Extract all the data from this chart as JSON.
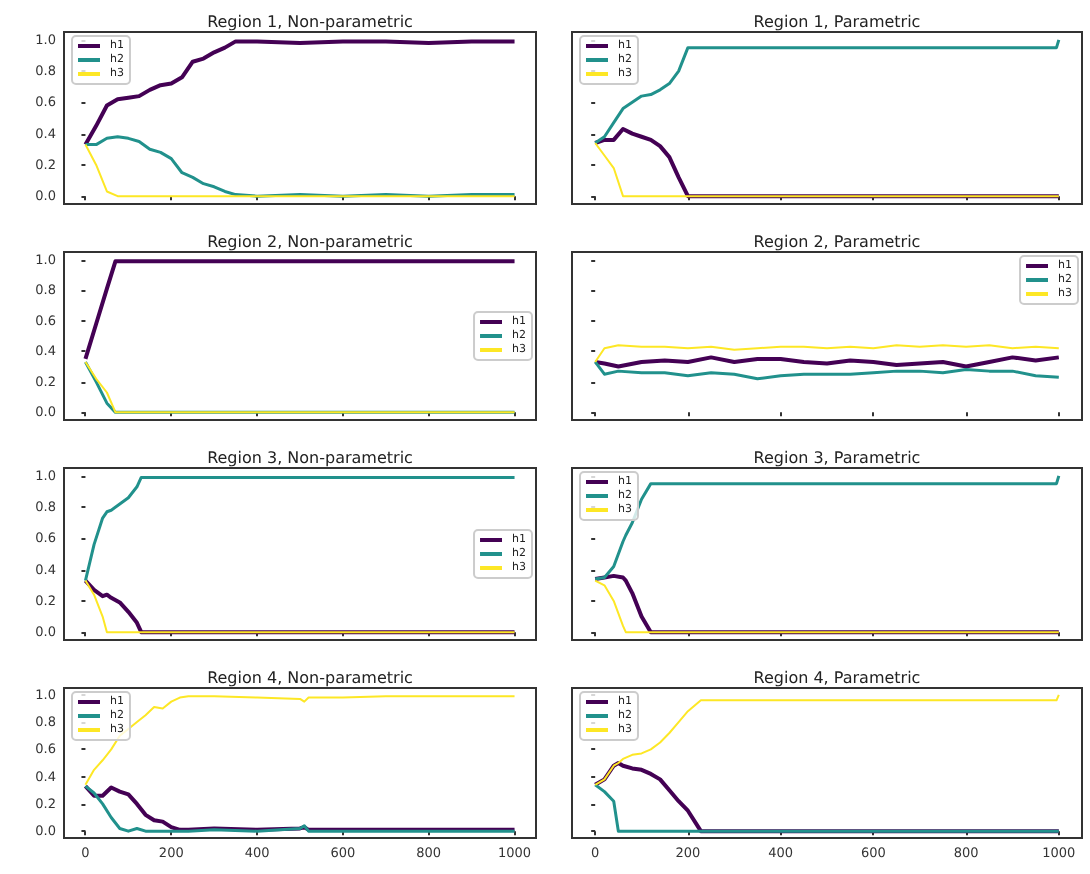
{
  "chart_data": [
    {
      "type": "line",
      "title": "Region 1, Non-parametric",
      "legend": "top left",
      "tick_labels": "y",
      "xlim": [
        -50,
        1050
      ],
      "xticks": [
        0,
        200,
        400,
        600,
        800,
        1000
      ],
      "ylim": [
        -0.05,
        1.05
      ],
      "yticks": [
        {
          "value": 0,
          "label": "0.0"
        },
        {
          "value": 0.2,
          "label": "0.2"
        },
        {
          "value": 0.4,
          "label": "0.4"
        },
        {
          "value": 0.6,
          "label": "0.6"
        },
        {
          "value": 0.8,
          "label": "0.8"
        },
        {
          "value": 1,
          "label": "1.0"
        }
      ],
      "x": [
        0,
        25,
        50,
        75,
        100,
        125,
        150,
        175,
        200,
        225,
        250,
        275,
        300,
        325,
        350,
        400,
        500,
        600,
        700,
        800,
        900,
        1000
      ],
      "series": [
        {
          "name": "h1",
          "color": "#440154",
          "values": [
            0.33,
            0.45,
            0.58,
            0.62,
            0.63,
            0.64,
            0.68,
            0.71,
            0.72,
            0.76,
            0.86,
            0.88,
            0.92,
            0.95,
            0.99,
            0.99,
            0.98,
            0.99,
            0.99,
            0.98,
            0.99,
            0.99
          ]
        },
        {
          "name": "h2",
          "color": "#21918c",
          "values": [
            0.33,
            0.33,
            0.37,
            0.38,
            0.37,
            0.35,
            0.3,
            0.28,
            0.24,
            0.15,
            0.12,
            0.08,
            0.06,
            0.03,
            0.01,
            0,
            0.01,
            0,
            0.01,
            0,
            0.01,
            0.01
          ]
        },
        {
          "name": "h3",
          "color": "#fde725",
          "values": [
            0.33,
            0.2,
            0.03,
            0,
            0,
            0,
            0,
            0,
            0,
            0,
            0,
            0,
            0,
            0,
            0,
            0,
            0,
            0,
            0,
            0,
            0,
            0
          ]
        }
      ]
    },
    {
      "type": "line",
      "title": "Region 1, Parametric",
      "legend": "top left",
      "tick_labels": false,
      "xlim": [
        -50,
        1050
      ],
      "xticks": [
        0,
        200,
        400,
        600,
        800,
        1000
      ],
      "ylim": [
        -0.05,
        1.05
      ],
      "yticks": [
        {
          "value": 0,
          "label": null
        },
        {
          "value": 0.2,
          "label": null
        },
        {
          "value": 0.4,
          "label": null
        },
        {
          "value": 0.6,
          "label": null
        },
        {
          "value": 0.8,
          "label": null
        },
        {
          "value": 1,
          "label": null
        }
      ],
      "x": [
        0,
        20,
        40,
        60,
        80,
        100,
        120,
        140,
        160,
        180,
        200,
        400,
        600,
        800,
        995,
        1000
      ],
      "series": [
        {
          "name": "h1",
          "color": "#440154",
          "values": [
            0.34,
            0.36,
            0.36,
            0.43,
            0.4,
            0.38,
            0.36,
            0.32,
            0.25,
            0.12,
            0,
            0,
            0,
            0,
            0,
            0
          ]
        },
        {
          "name": "h2",
          "color": "#21918c",
          "values": [
            0.34,
            0.38,
            0.47,
            0.56,
            0.6,
            0.64,
            0.65,
            0.68,
            0.72,
            0.8,
            0.95,
            0.95,
            0.95,
            0.95,
            0.95,
            1
          ]
        },
        {
          "name": "h3",
          "color": "#fde725",
          "values": [
            0.34,
            0.26,
            0.18,
            0,
            0,
            0,
            0,
            0,
            0,
            0,
            0,
            0,
            0,
            0,
            0,
            0
          ]
        }
      ]
    },
    {
      "type": "line",
      "title": "Region 2, Non-parametric",
      "legend": "right",
      "tick_labels": "y",
      "xlim": [
        -50,
        1050
      ],
      "xticks": [
        0,
        200,
        400,
        600,
        800,
        1000
      ],
      "ylim": [
        -0.05,
        1.05
      ],
      "yticks": [
        {
          "value": 0,
          "label": "0.0"
        },
        {
          "value": 0.2,
          "label": "0.2"
        },
        {
          "value": 0.4,
          "label": "0.4"
        },
        {
          "value": 0.6,
          "label": "0.6"
        },
        {
          "value": 0.8,
          "label": "0.8"
        },
        {
          "value": 1,
          "label": "1.0"
        }
      ],
      "x": [
        0,
        25,
        50,
        70,
        1000
      ],
      "series": [
        {
          "name": "h1",
          "color": "#440154",
          "values": [
            0.35,
            0.58,
            0.81,
            0.99,
            0.99
          ]
        },
        {
          "name": "h2",
          "color": "#21918c",
          "values": [
            0.33,
            0.2,
            0.06,
            0,
            0
          ]
        },
        {
          "name": "h3",
          "color": "#fde725",
          "values": [
            0.33,
            0.22,
            0.13,
            0,
            0
          ]
        }
      ]
    },
    {
      "type": "line",
      "title": "Region 2, Parametric",
      "legend": "top right",
      "tick_labels": false,
      "xlim": [
        -50,
        1050
      ],
      "xticks": [
        0,
        200,
        400,
        600,
        800,
        1000
      ],
      "ylim": [
        -0.05,
        1.05
      ],
      "yticks": [
        {
          "value": 0,
          "label": null
        },
        {
          "value": 0.2,
          "label": null
        },
        {
          "value": 0.4,
          "label": null
        },
        {
          "value": 0.6,
          "label": null
        },
        {
          "value": 0.8,
          "label": null
        },
        {
          "value": 1,
          "label": null
        }
      ],
      "x": [
        0,
        20,
        50,
        100,
        150,
        200,
        250,
        300,
        350,
        400,
        450,
        500,
        550,
        600,
        650,
        700,
        750,
        800,
        850,
        900,
        950,
        1000
      ],
      "series": [
        {
          "name": "h1",
          "color": "#440154",
          "values": [
            0.33,
            0.32,
            0.3,
            0.33,
            0.34,
            0.33,
            0.36,
            0.33,
            0.35,
            0.35,
            0.33,
            0.32,
            0.34,
            0.33,
            0.31,
            0.32,
            0.33,
            0.3,
            0.33,
            0.36,
            0.34,
            0.36
          ]
        },
        {
          "name": "h2",
          "color": "#21918c",
          "values": [
            0.33,
            0.25,
            0.27,
            0.26,
            0.26,
            0.24,
            0.26,
            0.25,
            0.22,
            0.24,
            0.25,
            0.25,
            0.25,
            0.26,
            0.27,
            0.27,
            0.26,
            0.28,
            0.27,
            0.27,
            0.24,
            0.23
          ]
        },
        {
          "name": "h3",
          "color": "#fde725",
          "values": [
            0.33,
            0.42,
            0.44,
            0.43,
            0.43,
            0.42,
            0.43,
            0.41,
            0.42,
            0.43,
            0.43,
            0.42,
            0.43,
            0.42,
            0.44,
            0.43,
            0.44,
            0.43,
            0.44,
            0.42,
            0.43,
            0.42
          ]
        }
      ]
    },
    {
      "type": "line",
      "title": "Region 3, Non-parametric",
      "legend": "right",
      "tick_labels": "y",
      "xlim": [
        -50,
        1050
      ],
      "xticks": [
        0,
        200,
        400,
        600,
        800,
        1000
      ],
      "ylim": [
        -0.05,
        1.05
      ],
      "yticks": [
        {
          "value": 0,
          "label": "0.0"
        },
        {
          "value": 0.2,
          "label": "0.2"
        },
        {
          "value": 0.4,
          "label": "0.4"
        },
        {
          "value": 0.6,
          "label": "0.6"
        },
        {
          "value": 0.8,
          "label": "0.8"
        },
        {
          "value": 1,
          "label": "1.0"
        }
      ],
      "x": [
        0,
        20,
        40,
        50,
        60,
        80,
        100,
        120,
        130,
        1000
      ],
      "series": [
        {
          "name": "h1",
          "color": "#440154",
          "values": [
            0.33,
            0.27,
            0.23,
            0.24,
            0.22,
            0.19,
            0.13,
            0.06,
            0,
            0
          ]
        },
        {
          "name": "h2",
          "color": "#21918c",
          "values": [
            0.33,
            0.56,
            0.73,
            0.77,
            0.78,
            0.82,
            0.86,
            0.93,
            0.99,
            0.99
          ]
        },
        {
          "name": "h3",
          "color": "#fde725",
          "values": [
            0.33,
            0.24,
            0.1,
            0,
            0,
            0,
            0,
            0,
            0,
            0
          ]
        }
      ]
    },
    {
      "type": "line",
      "title": "Region 3, Parametric",
      "legend": "top left",
      "tick_labels": false,
      "xlim": [
        -50,
        1050
      ],
      "xticks": [
        0,
        200,
        400,
        600,
        800,
        1000
      ],
      "ylim": [
        -0.05,
        1.05
      ],
      "yticks": [
        {
          "value": 0,
          "label": null
        },
        {
          "value": 0.2,
          "label": null
        },
        {
          "value": 0.4,
          "label": null
        },
        {
          "value": 0.6,
          "label": null
        },
        {
          "value": 0.8,
          "label": null
        },
        {
          "value": 1,
          "label": null
        }
      ],
      "x": [
        0,
        20,
        40,
        60,
        66,
        80,
        100,
        120,
        995,
        1000
      ],
      "series": [
        {
          "name": "h1",
          "color": "#440154",
          "values": [
            0.34,
            0.35,
            0.36,
            0.35,
            0.33,
            0.25,
            0.1,
            0,
            0,
            0
          ]
        },
        {
          "name": "h2",
          "color": "#21918c",
          "values": [
            0.34,
            0.35,
            0.42,
            0.58,
            0.62,
            0.7,
            0.85,
            0.95,
            0.95,
            1
          ]
        },
        {
          "name": "h3",
          "color": "#fde725",
          "values": [
            0.33,
            0.3,
            0.2,
            0.04,
            0,
            0,
            0,
            0,
            0,
            0
          ]
        }
      ]
    },
    {
      "type": "line",
      "title": "Region 4, Non-parametric",
      "legend": "top left",
      "xlim": [
        -50,
        1050
      ],
      "xticks": [
        0,
        200,
        400,
        600,
        800,
        1000
      ],
      "ylim": [
        -0.05,
        1.05
      ],
      "yticks": [
        {
          "value": 0,
          "label": "0.0"
        },
        {
          "value": 0.2,
          "label": "0.2"
        },
        {
          "value": 0.4,
          "label": "0.4"
        },
        {
          "value": 0.6,
          "label": "0.6"
        },
        {
          "value": 0.8,
          "label": "0.8"
        },
        {
          "value": 1,
          "label": "1.0"
        }
      ],
      "x": [
        0,
        20,
        40,
        60,
        80,
        100,
        120,
        140,
        160,
        180,
        200,
        220,
        240,
        300,
        400,
        500,
        510,
        520,
        600,
        700,
        800,
        900,
        1000
      ],
      "series": [
        {
          "name": "h1",
          "color": "#440154",
          "values": [
            0.33,
            0.26,
            0.26,
            0.32,
            0.29,
            0.27,
            0.2,
            0.12,
            0.08,
            0.07,
            0.03,
            0.01,
            0.01,
            0.02,
            0.01,
            0.02,
            0.03,
            0.01,
            0.01,
            0.01,
            0.01,
            0.01,
            0.01
          ]
        },
        {
          "name": "h2",
          "color": "#21918c",
          "values": [
            0.33,
            0.28,
            0.2,
            0.1,
            0.02,
            0,
            0.02,
            0,
            0,
            0,
            0,
            0,
            0,
            0.01,
            0,
            0.02,
            0.04,
            0,
            0,
            0,
            0,
            0,
            0
          ]
        },
        {
          "name": "h3",
          "color": "#fde725",
          "values": [
            0.34,
            0.45,
            0.52,
            0.6,
            0.7,
            0.75,
            0.8,
            0.85,
            0.91,
            0.9,
            0.95,
            0.98,
            0.99,
            0.99,
            0.98,
            0.97,
            0.95,
            0.98,
            0.98,
            0.99,
            0.99,
            0.99,
            0.99
          ]
        }
      ]
    },
    {
      "type": "line",
      "title": "Region 4, Parametric",
      "legend": "top left",
      "tick_labels": "x",
      "xlim": [
        -50,
        1050
      ],
      "xticks": [
        0,
        200,
        400,
        600,
        800,
        1000
      ],
      "ylim": [
        -0.05,
        1.05
      ],
      "yticks": [
        {
          "value": 0,
          "label": null
        },
        {
          "value": 0.2,
          "label": null
        },
        {
          "value": 0.4,
          "label": null
        },
        {
          "value": 0.6,
          "label": null
        },
        {
          "value": 0.8,
          "label": null
        },
        {
          "value": 1,
          "label": null
        }
      ],
      "x": [
        0,
        20,
        40,
        50,
        60,
        80,
        100,
        120,
        140,
        160,
        180,
        200,
        228,
        995,
        1000
      ],
      "series": [
        {
          "name": "h1",
          "color": "#440154",
          "values": [
            0.34,
            0.38,
            0.48,
            0.5,
            0.48,
            0.46,
            0.45,
            0.42,
            0.38,
            0.3,
            0.22,
            0.15,
            0,
            0,
            0
          ]
        },
        {
          "name": "h2",
          "color": "#21918c",
          "values": [
            0.34,
            0.29,
            0.22,
            0,
            0,
            0,
            0,
            0,
            0,
            0,
            0,
            0,
            0,
            0,
            0
          ]
        },
        {
          "name": "h3",
          "color": "#fde725",
          "values": [
            0.34,
            0.38,
            0.48,
            0.5,
            0.53,
            0.56,
            0.57,
            0.6,
            0.65,
            0.72,
            0.8,
            0.88,
            0.96,
            0.96,
            1
          ]
        }
      ]
    }
  ]
}
